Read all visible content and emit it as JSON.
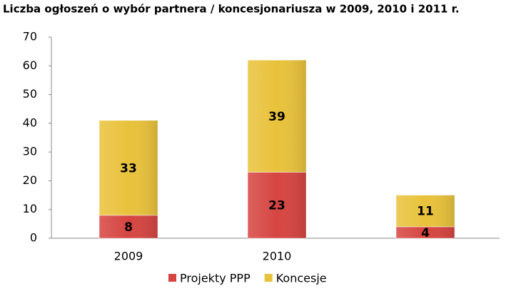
{
  "chart_data": {
    "type": "stacked-bar",
    "title": "Liczba ogłoszeń o wybór partnera / koncesjonariusza w 2009, 2010 i 2011 r.",
    "categories": [
      "2009",
      "2010",
      null
    ],
    "series": [
      {
        "name": "Projekty PPP",
        "color": "#d64541",
        "values": [
          8,
          23,
          4
        ]
      },
      {
        "name": "Koncesje",
        "color": "#e9c23b",
        "values": [
          33,
          39,
          11
        ]
      }
    ],
    "ylim": [
      0,
      70
    ],
    "yticks": [
      0,
      10,
      20,
      30,
      40,
      50,
      60,
      70
    ],
    "legend": "bottom"
  }
}
